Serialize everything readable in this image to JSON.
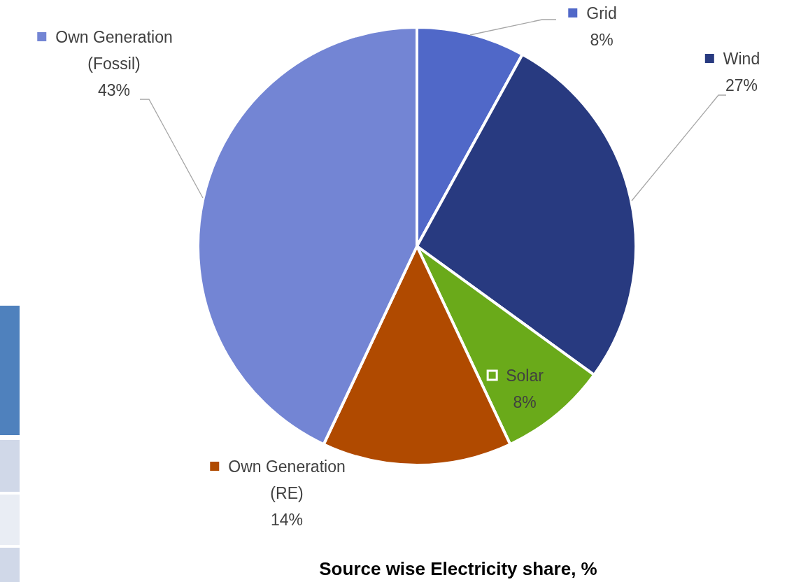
{
  "chart_data": {
    "type": "pie",
    "title": "Source wise Electricity share, %",
    "categories": [
      "Grid",
      "Wind",
      "Solar",
      "Own Generation (RE)",
      "Own Generation (Fossil)"
    ],
    "values": [
      8,
      27,
      8,
      14,
      43
    ],
    "colors": [
      "#5068c8",
      "#283a80",
      "#6aaa1a",
      "#b04a00",
      "#7385d4"
    ],
    "legend": "bottom left",
    "value_labels": [
      "8%",
      "27%",
      "8%",
      "14%",
      "43%"
    ]
  }
}
